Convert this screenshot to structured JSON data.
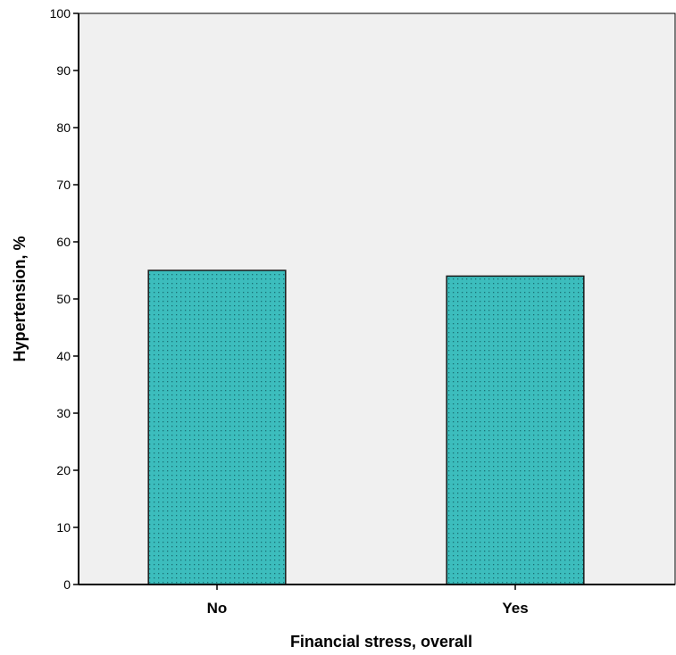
{
  "chart_data": {
    "type": "bar",
    "categories": [
      "No",
      "Yes"
    ],
    "values": [
      55,
      54
    ],
    "xlabel": "Financial stress, overall",
    "ylabel": "Hypertension, %",
    "ylim": [
      0,
      100
    ],
    "yticks": [
      0,
      10,
      20,
      30,
      40,
      50,
      60,
      70,
      80,
      90,
      100
    ],
    "grid": false,
    "colors": {
      "bar_fill": "#3cbdbd",
      "bar_dots": "#1a6f74",
      "bar_stroke": "#1a1a1a",
      "plot_background": "#f0f0f0",
      "axis": "#000000"
    }
  }
}
